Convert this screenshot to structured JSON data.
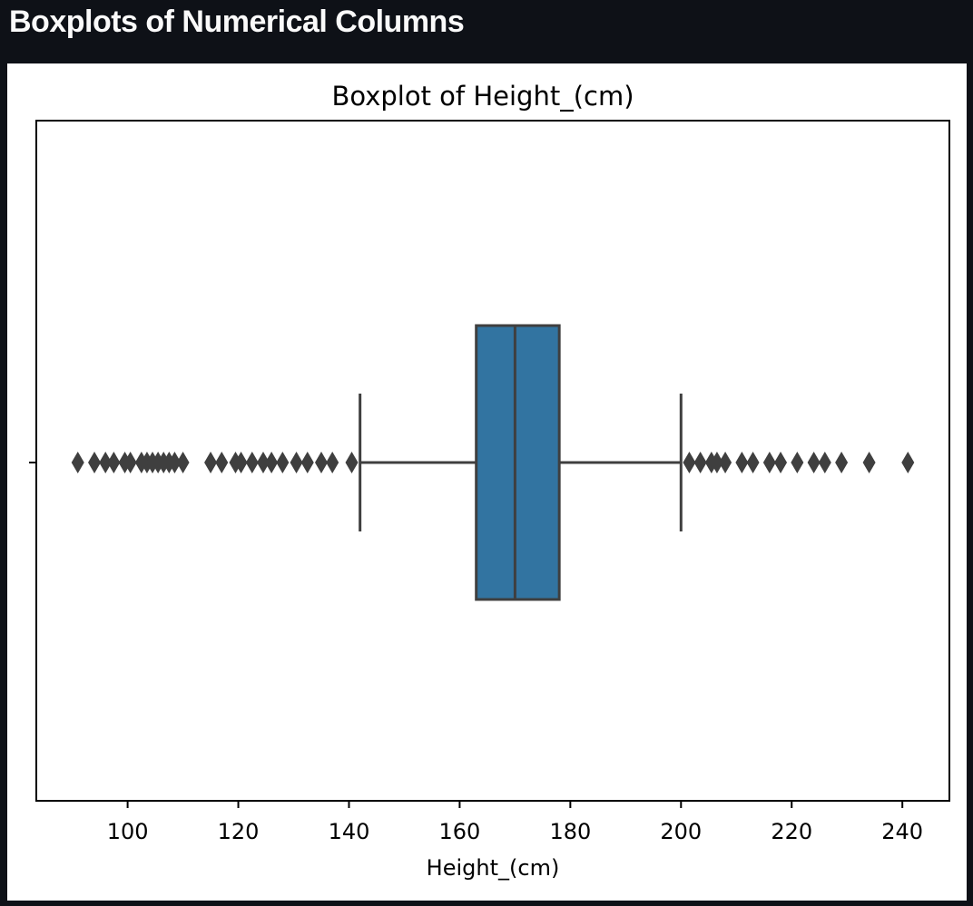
{
  "page": {
    "heading": "Boxplots of Numerical Columns"
  },
  "chart_data": {
    "type": "box",
    "title": "Boxplot of Height_(cm)",
    "xlabel": "Height_(cm)",
    "ylabel": "",
    "orientation": "horizontal",
    "xlim": [
      83.5,
      248.5
    ],
    "xticks": [
      100,
      120,
      140,
      160,
      180,
      200,
      220,
      240
    ],
    "xtick_labels": [
      "100",
      "120",
      "140",
      "160",
      "180",
      "200",
      "220",
      "240"
    ],
    "grid": false,
    "series": [
      {
        "whisker_low": 142,
        "q1": 163,
        "median": 170,
        "q3": 178,
        "whisker_high": 200,
        "outliers": [
          91,
          94,
          96,
          97.5,
          99.5,
          100.5,
          102.5,
          103.5,
          104.5,
          105.5,
          106.5,
          107.5,
          108.5,
          110,
          115,
          117,
          119.5,
          120.5,
          122.5,
          124.5,
          126,
          128,
          130.5,
          132.5,
          135,
          137,
          140.5,
          201.5,
          203.5,
          205.5,
          206.5,
          208,
          211,
          213,
          216,
          218,
          221,
          224,
          226,
          229,
          234,
          241
        ]
      }
    ],
    "colors": {
      "box_fill": "#3274a1",
      "line": "#3f3f3f"
    }
  }
}
